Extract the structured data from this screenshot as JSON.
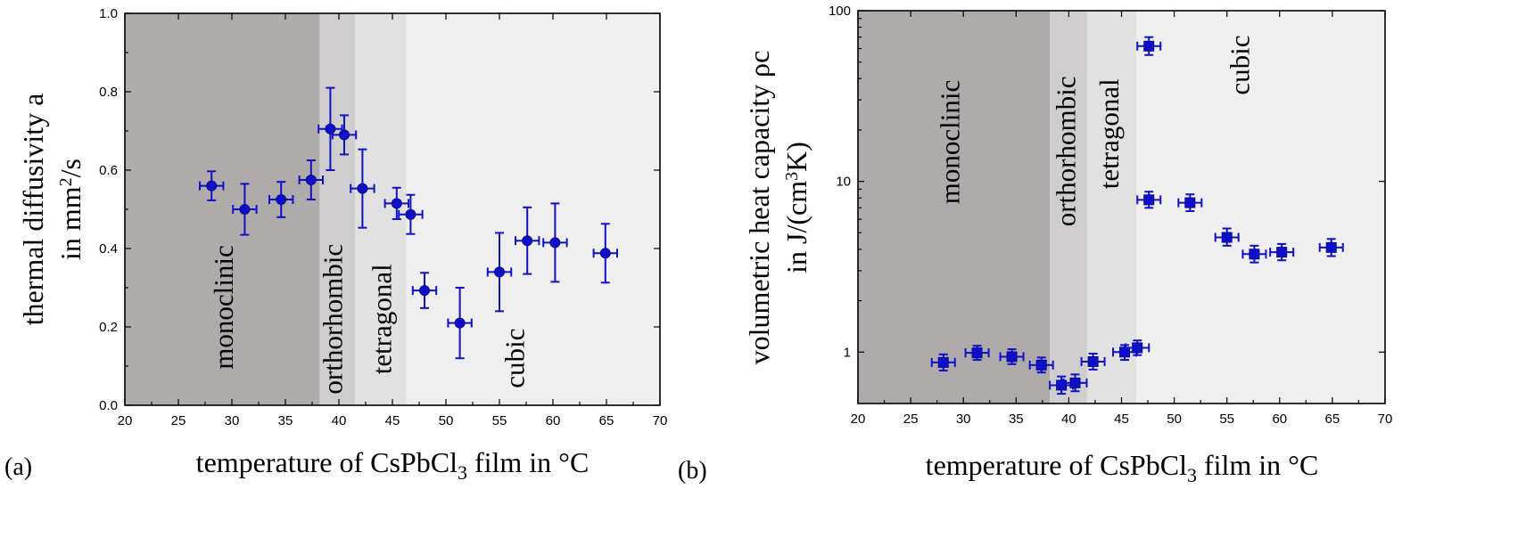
{
  "chart_data": [
    {
      "type": "scatter",
      "panel_label": "(a)",
      "xlabel_prefix": "temperature of CsPbCl",
      "xlabel_sub": "3",
      "xlabel_suffix": " film in °C",
      "ylabel_line1": "thermal diffusivity a",
      "ylabel_line2_prefix": "in mm",
      "ylabel_line2_sup": "2",
      "ylabel_line2_suffix": "/s",
      "xlim": [
        20,
        70
      ],
      "ylim": [
        0.0,
        1.0
      ],
      "yscale": "linear",
      "x_ticks": [
        "20",
        "25",
        "30",
        "35",
        "40",
        "45",
        "50",
        "55",
        "60",
        "65",
        "70"
      ],
      "y_ticks": [
        "0.0",
        "0.2",
        "0.4",
        "0.6",
        "0.8",
        "1.0"
      ],
      "phases": [
        {
          "name": "monoclinic",
          "x_from": 20,
          "x_to": 38.2,
          "color": "#afabab",
          "label_x": 29.5,
          "label_y": 0.25
        },
        {
          "name": "orthorhombic",
          "x_from": 38.2,
          "x_to": 41.5,
          "color": "#cfcdcd",
          "label_x": 39.7,
          "label_y": 0.22
        },
        {
          "name": "tetragonal",
          "x_from": 41.5,
          "x_to": 46.3,
          "color": "#e1e1e1",
          "label_x": 44.3,
          "label_y": 0.22
        },
        {
          "name": "cubic",
          "x_from": 46.3,
          "x_to": 70,
          "color": "#efefef",
          "label_x": 56.7,
          "label_y": 0.12
        }
      ],
      "points": [
        {
          "x": 28.1,
          "y": 0.56,
          "xerr": 1.1,
          "yerr": 0.037
        },
        {
          "x": 31.2,
          "y": 0.5,
          "xerr": 1.1,
          "yerr": 0.065
        },
        {
          "x": 34.6,
          "y": 0.525,
          "xerr": 1.1,
          "yerr": 0.045
        },
        {
          "x": 37.4,
          "y": 0.575,
          "xerr": 1.1,
          "yerr": 0.05
        },
        {
          "x": 39.2,
          "y": 0.705,
          "xerr": 1.1,
          "yerr": 0.105
        },
        {
          "x": 40.5,
          "y": 0.69,
          "xerr": 1.1,
          "yerr": 0.05
        },
        {
          "x": 42.2,
          "y": 0.553,
          "xerr": 1.1,
          "yerr": 0.1
        },
        {
          "x": 45.4,
          "y": 0.515,
          "xerr": 1.1,
          "yerr": 0.04
        },
        {
          "x": 46.7,
          "y": 0.487,
          "xerr": 1.1,
          "yerr": 0.05
        },
        {
          "x": 48.0,
          "y": 0.293,
          "xerr": 1.1,
          "yerr": 0.045
        },
        {
          "x": 51.3,
          "y": 0.21,
          "xerr": 1.1,
          "yerr": 0.09
        },
        {
          "x": 55.0,
          "y": 0.34,
          "xerr": 1.1,
          "yerr": 0.1
        },
        {
          "x": 57.6,
          "y": 0.42,
          "xerr": 1.1,
          "yerr": 0.085
        },
        {
          "x": 60.2,
          "y": 0.415,
          "xerr": 1.1,
          "yerr": 0.1
        },
        {
          "x": 64.9,
          "y": 0.388,
          "xerr": 1.1,
          "yerr": 0.075
        }
      ]
    },
    {
      "type": "scatter",
      "panel_label": "(b)",
      "xlabel_prefix": "temperature of CsPbCl",
      "xlabel_sub": "3",
      "xlabel_suffix": " film in °C",
      "ylabel_line1": "volumetric heat capacity ρc",
      "ylabel_line2_prefix": "in J/(cm",
      "ylabel_line2_sup": "3",
      "ylabel_line2_suffix": "K)",
      "xlim": [
        20,
        70
      ],
      "ylim": [
        0.5,
        100
      ],
      "yscale": "log",
      "x_ticks": [
        "20",
        "25",
        "30",
        "35",
        "40",
        "45",
        "50",
        "55",
        "60",
        "65",
        "70"
      ],
      "y_ticks": [
        "1",
        "10",
        "100"
      ],
      "phases": [
        {
          "name": "monoclinic",
          "x_from": 20,
          "x_to": 38.2,
          "color": "#afabab",
          "label_x": 29.0,
          "label_y": 17
        },
        {
          "name": "orthorhombic",
          "x_from": 38.2,
          "x_to": 41.7,
          "color": "#cfcdcd",
          "label_x": 40.0,
          "label_y": 15
        },
        {
          "name": "tetragonal",
          "x_from": 41.7,
          "x_to": 46.4,
          "color": "#e1e1e1",
          "label_x": 44.1,
          "label_y": 19
        },
        {
          "name": "cubic",
          "x_from": 46.4,
          "x_to": 70,
          "color": "#efefef",
          "label_x": 56.5,
          "label_y": 48
        }
      ],
      "points": [
        {
          "x": 28.1,
          "y": 0.87,
          "xerr": 1.1,
          "ylo": 0.78,
          "yhi": 0.97
        },
        {
          "x": 31.3,
          "y": 0.99,
          "xerr": 1.1,
          "ylo": 0.9,
          "yhi": 1.09
        },
        {
          "x": 34.6,
          "y": 0.94,
          "xerr": 1.1,
          "ylo": 0.85,
          "yhi": 1.04
        },
        {
          "x": 37.4,
          "y": 0.84,
          "xerr": 1.1,
          "ylo": 0.76,
          "yhi": 0.93
        },
        {
          "x": 39.3,
          "y": 0.64,
          "xerr": 1.1,
          "ylo": 0.57,
          "yhi": 0.72
        },
        {
          "x": 40.6,
          "y": 0.66,
          "xerr": 1.1,
          "ylo": 0.59,
          "yhi": 0.74
        },
        {
          "x": 42.3,
          "y": 0.88,
          "xerr": 1.1,
          "ylo": 0.79,
          "yhi": 0.98
        },
        {
          "x": 45.3,
          "y": 1.0,
          "xerr": 1.1,
          "ylo": 0.9,
          "yhi": 1.1
        },
        {
          "x": 46.5,
          "y": 1.06,
          "xerr": 1.1,
          "ylo": 0.96,
          "yhi": 1.17
        },
        {
          "x": 47.6,
          "y": 7.8,
          "xerr": 1.1,
          "ylo": 7.0,
          "yhi": 8.7
        },
        {
          "x": 47.6,
          "y": 62,
          "xerr": 1.1,
          "ylo": 55,
          "yhi": 70
        },
        {
          "x": 51.5,
          "y": 7.5,
          "xerr": 1.1,
          "ylo": 6.7,
          "yhi": 8.4
        },
        {
          "x": 55.0,
          "y": 4.7,
          "xerr": 1.1,
          "ylo": 4.2,
          "yhi": 5.3
        },
        {
          "x": 57.6,
          "y": 3.75,
          "xerr": 1.1,
          "ylo": 3.35,
          "yhi": 4.2
        },
        {
          "x": 60.2,
          "y": 3.85,
          "xerr": 1.1,
          "ylo": 3.45,
          "yhi": 4.3
        },
        {
          "x": 64.9,
          "y": 4.1,
          "xerr": 1.1,
          "ylo": 3.65,
          "yhi": 4.6
        }
      ]
    }
  ]
}
